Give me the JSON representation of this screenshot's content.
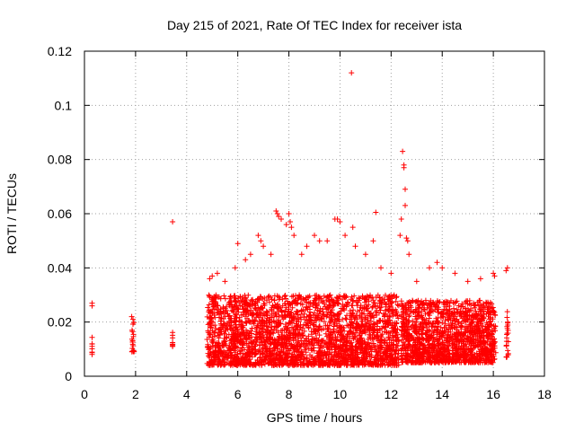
{
  "chart_data": {
    "type": "scatter",
    "title": "Day 215 of 2021, Rate Of TEC Index for receiver ista",
    "xlabel": "GPS time / hours",
    "ylabel": "ROTI / TECUs",
    "xlim": [
      0,
      18
    ],
    "ylim": [
      0,
      0.12
    ],
    "xticks": [
      "0",
      "2",
      "4",
      "6",
      "8",
      "10",
      "12",
      "14",
      "16",
      "18"
    ],
    "yticks": [
      "0",
      "0.02",
      "0.04",
      "0.06",
      "0.08",
      "0.1",
      "0.12"
    ],
    "grid": true,
    "marker": "plus",
    "color": "#ff0000",
    "series": [
      {
        "name": "ROTI",
        "segments": [
          {
            "x_start": 0.3,
            "x_end": 0.3,
            "y_min": 0.008,
            "y_max": 0.016,
            "count": 8
          },
          {
            "x_start": 1.85,
            "x_end": 1.95,
            "y_min": 0.009,
            "y_max": 0.02,
            "count": 18
          },
          {
            "x_start": 3.45,
            "x_end": 3.45,
            "y_min": 0.008,
            "y_max": 0.017,
            "count": 8
          },
          {
            "x_start": 4.8,
            "x_end": 12.3,
            "y_min": 0.004,
            "y_max": 0.03,
            "count": 2600
          },
          {
            "x_start": 12.4,
            "x_end": 16.1,
            "y_min": 0.005,
            "y_max": 0.028,
            "count": 1400
          },
          {
            "x_start": 16.5,
            "x_end": 16.6,
            "y_min": 0.007,
            "y_max": 0.025,
            "count": 22
          }
        ],
        "points": [
          [
            0.3,
            0.026
          ],
          [
            0.3,
            0.027
          ],
          [
            1.85,
            0.022
          ],
          [
            1.9,
            0.021
          ],
          [
            3.45,
            0.057
          ],
          [
            4.9,
            0.036
          ],
          [
            5.0,
            0.037
          ],
          [
            5.2,
            0.038
          ],
          [
            5.5,
            0.035
          ],
          [
            5.9,
            0.04
          ],
          [
            6.0,
            0.049
          ],
          [
            6.3,
            0.043
          ],
          [
            6.5,
            0.045
          ],
          [
            6.8,
            0.052
          ],
          [
            6.9,
            0.05
          ],
          [
            7.0,
            0.048
          ],
          [
            7.3,
            0.045
          ],
          [
            7.5,
            0.061
          ],
          [
            7.55,
            0.06
          ],
          [
            7.6,
            0.059
          ],
          [
            7.7,
            0.058
          ],
          [
            7.9,
            0.056
          ],
          [
            8.0,
            0.06
          ],
          [
            8.05,
            0.057
          ],
          [
            8.1,
            0.055
          ],
          [
            8.2,
            0.052
          ],
          [
            8.5,
            0.045
          ],
          [
            8.7,
            0.048
          ],
          [
            9.0,
            0.052
          ],
          [
            9.2,
            0.05
          ],
          [
            9.5,
            0.05
          ],
          [
            9.8,
            0.058
          ],
          [
            9.9,
            0.058
          ],
          [
            10.0,
            0.057
          ],
          [
            10.2,
            0.052
          ],
          [
            10.45,
            0.112
          ],
          [
            10.5,
            0.055
          ],
          [
            10.6,
            0.048
          ],
          [
            11.0,
            0.045
          ],
          [
            11.3,
            0.05
          ],
          [
            11.4,
            0.0605
          ],
          [
            11.6,
            0.04
          ],
          [
            12.0,
            0.038
          ],
          [
            12.35,
            0.052
          ],
          [
            12.4,
            0.058
          ],
          [
            12.45,
            0.083
          ],
          [
            12.5,
            0.078
          ],
          [
            12.5,
            0.077
          ],
          [
            12.55,
            0.069
          ],
          [
            12.55,
            0.063
          ],
          [
            12.6,
            0.051
          ],
          [
            12.65,
            0.05
          ],
          [
            12.7,
            0.045
          ],
          [
            13.0,
            0.035
          ],
          [
            13.5,
            0.04
          ],
          [
            13.8,
            0.042
          ],
          [
            14.0,
            0.04
          ],
          [
            14.5,
            0.038
          ],
          [
            15.0,
            0.035
          ],
          [
            15.5,
            0.036
          ],
          [
            16.0,
            0.038
          ],
          [
            16.05,
            0.037
          ],
          [
            16.5,
            0.039
          ],
          [
            16.55,
            0.04
          ]
        ]
      }
    ]
  }
}
